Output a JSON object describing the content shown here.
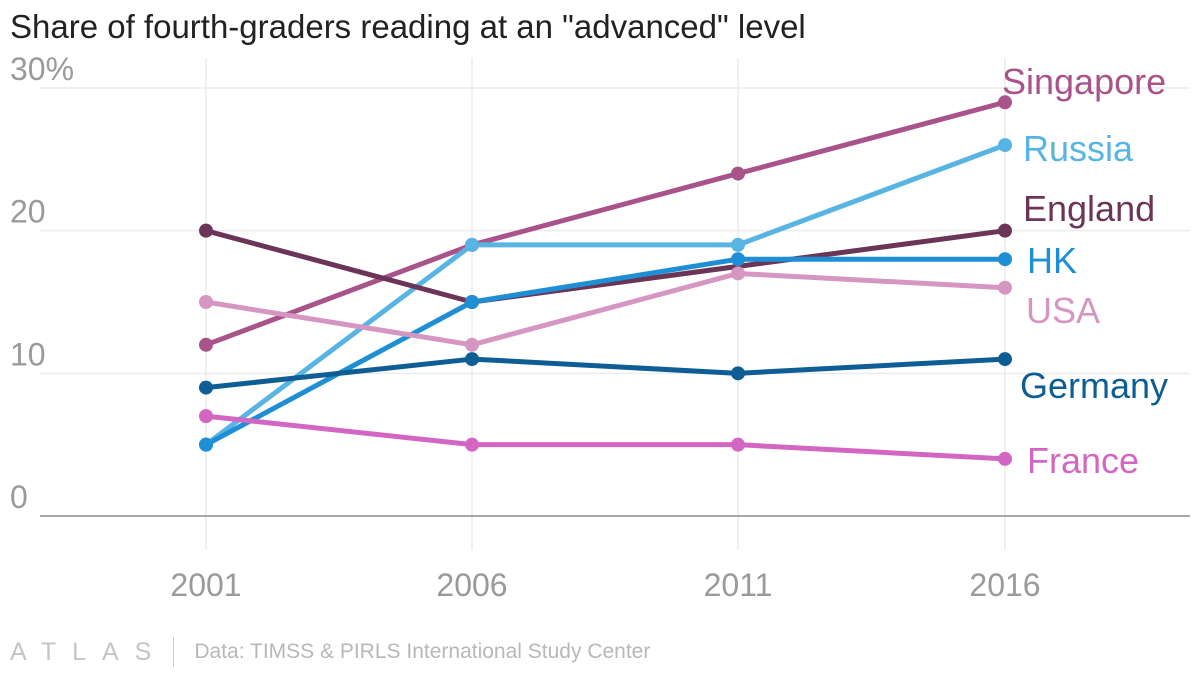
{
  "title": "Share of fourth-graders reading at an \"advanced\" level",
  "footer": {
    "logo": "ATLAS",
    "source": "Data: TIMSS & PIRLS International Study Center"
  },
  "chart_data": {
    "type": "line",
    "title": "Share of fourth-graders reading at an \"advanced\" level",
    "xlabel": "",
    "ylabel": "",
    "categories": [
      "2001",
      "2006",
      "2011",
      "2016"
    ],
    "ylim": [
      0,
      30
    ],
    "yticks": [
      0,
      10,
      20,
      30
    ],
    "ytick_labels": [
      "0",
      "10",
      "20",
      "30%"
    ],
    "grid": true,
    "legend": "direct labels at line ends (right)",
    "series": [
      {
        "name": "Singapore",
        "color": "#a8538a",
        "values": [
          12,
          19,
          24,
          29
        ]
      },
      {
        "name": "Russia",
        "color": "#58b4e3",
        "values": [
          5,
          19,
          19,
          26
        ]
      },
      {
        "name": "England",
        "color": "#6b3558",
        "values": [
          20,
          15,
          null,
          20
        ]
      },
      {
        "name": "HK",
        "color": "#1e8fd5",
        "values": [
          5,
          15,
          18,
          18
        ]
      },
      {
        "name": "USA",
        "color": "#d596c2",
        "values": [
          15,
          12,
          17,
          16
        ]
      },
      {
        "name": "Germany",
        "color": "#0e5d95",
        "values": [
          9,
          11,
          10,
          11
        ]
      },
      {
        "name": "France",
        "color": "#d466c3",
        "values": [
          7,
          5,
          5,
          4
        ]
      }
    ]
  }
}
